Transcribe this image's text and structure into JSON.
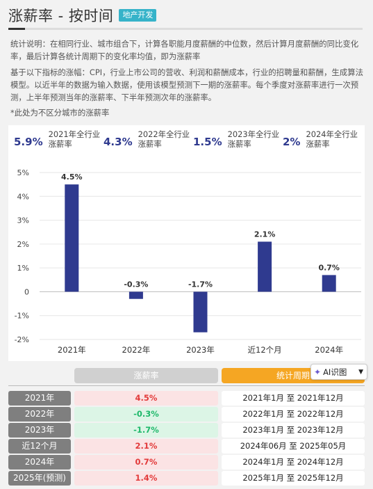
{
  "header": {
    "title": "涨薪率 - 按时间",
    "tag": "地产开发"
  },
  "description": {
    "p1": "统计说明：在相同行业、城市组合下，计算各职能月度薪酬的中位数，然后计算月度薪酬的同比变化率，最后计算各统计周期下的变化率均值，即为涨薪率",
    "p2": "基于以下指标的涨幅：CPI，行业上市公司的营收、利润和薪酬成本，行业的招聘量和薪酬，生成算法模型。以近半年的数据为输入数据，使用该模型预测下一期的涨薪率。每个季度对涨薪率进行一次预测，上半年预测当年的涨薪率、下半年预测次年的涨薪率。",
    "note": "*此处为不区分城市的涨薪率"
  },
  "summary": [
    {
      "value": "5.9%",
      "label1": "2021年全行业",
      "label2": "涨薪率"
    },
    {
      "value": "4.3%",
      "label1": "2022年全行业",
      "label2": "涨薪率"
    },
    {
      "value": "1.5%",
      "label1": "2023年全行业",
      "label2": "涨薪率"
    },
    {
      "value": "2%",
      "label1": "2024年全行业",
      "label2": "涨薪率"
    }
  ],
  "chart_data": {
    "type": "bar",
    "categories": [
      "2021年",
      "2022年",
      "2023年",
      "近12个月",
      "2024年"
    ],
    "values": [
      4.5,
      -0.3,
      -1.7,
      2.1,
      0.7
    ],
    "data_labels": [
      "4.5%",
      "-0.3%",
      "-1.7%",
      "2.1%",
      "0.7%"
    ],
    "yticks": [
      "5%",
      "4%",
      "3%",
      "2%",
      "1%",
      "0",
      "-1%",
      "-2%"
    ],
    "ylim": [
      -2,
      5
    ],
    "bar_color": "#2f3a8f",
    "grid": true
  },
  "table": {
    "col_rate": "涨薪率",
    "col_period": "统计周期",
    "rows": [
      {
        "year": "2021年",
        "rate": "4.5%",
        "period": "2021年1月 至 2021年12月",
        "sign": "pos"
      },
      {
        "year": "2022年",
        "rate": "-0.3%",
        "period": "2022年1月 至 2022年12月",
        "sign": "neg"
      },
      {
        "year": "2023年",
        "rate": "-1.7%",
        "period": "2023年1月 至 2023年12月",
        "sign": "neg"
      },
      {
        "year": "近12个月",
        "rate": "2.1%",
        "period": "2024年06月 至 2025年05月",
        "sign": "pos"
      },
      {
        "year": "2024年",
        "rate": "0.7%",
        "period": "2024年1月 至 2024年12月",
        "sign": "pos"
      },
      {
        "year": "2025年(预测)",
        "rate": "1.4%",
        "period": "2025年1月 至 2025年12月",
        "sign": "pos"
      }
    ]
  },
  "ai_button": {
    "label": "AI识图"
  }
}
